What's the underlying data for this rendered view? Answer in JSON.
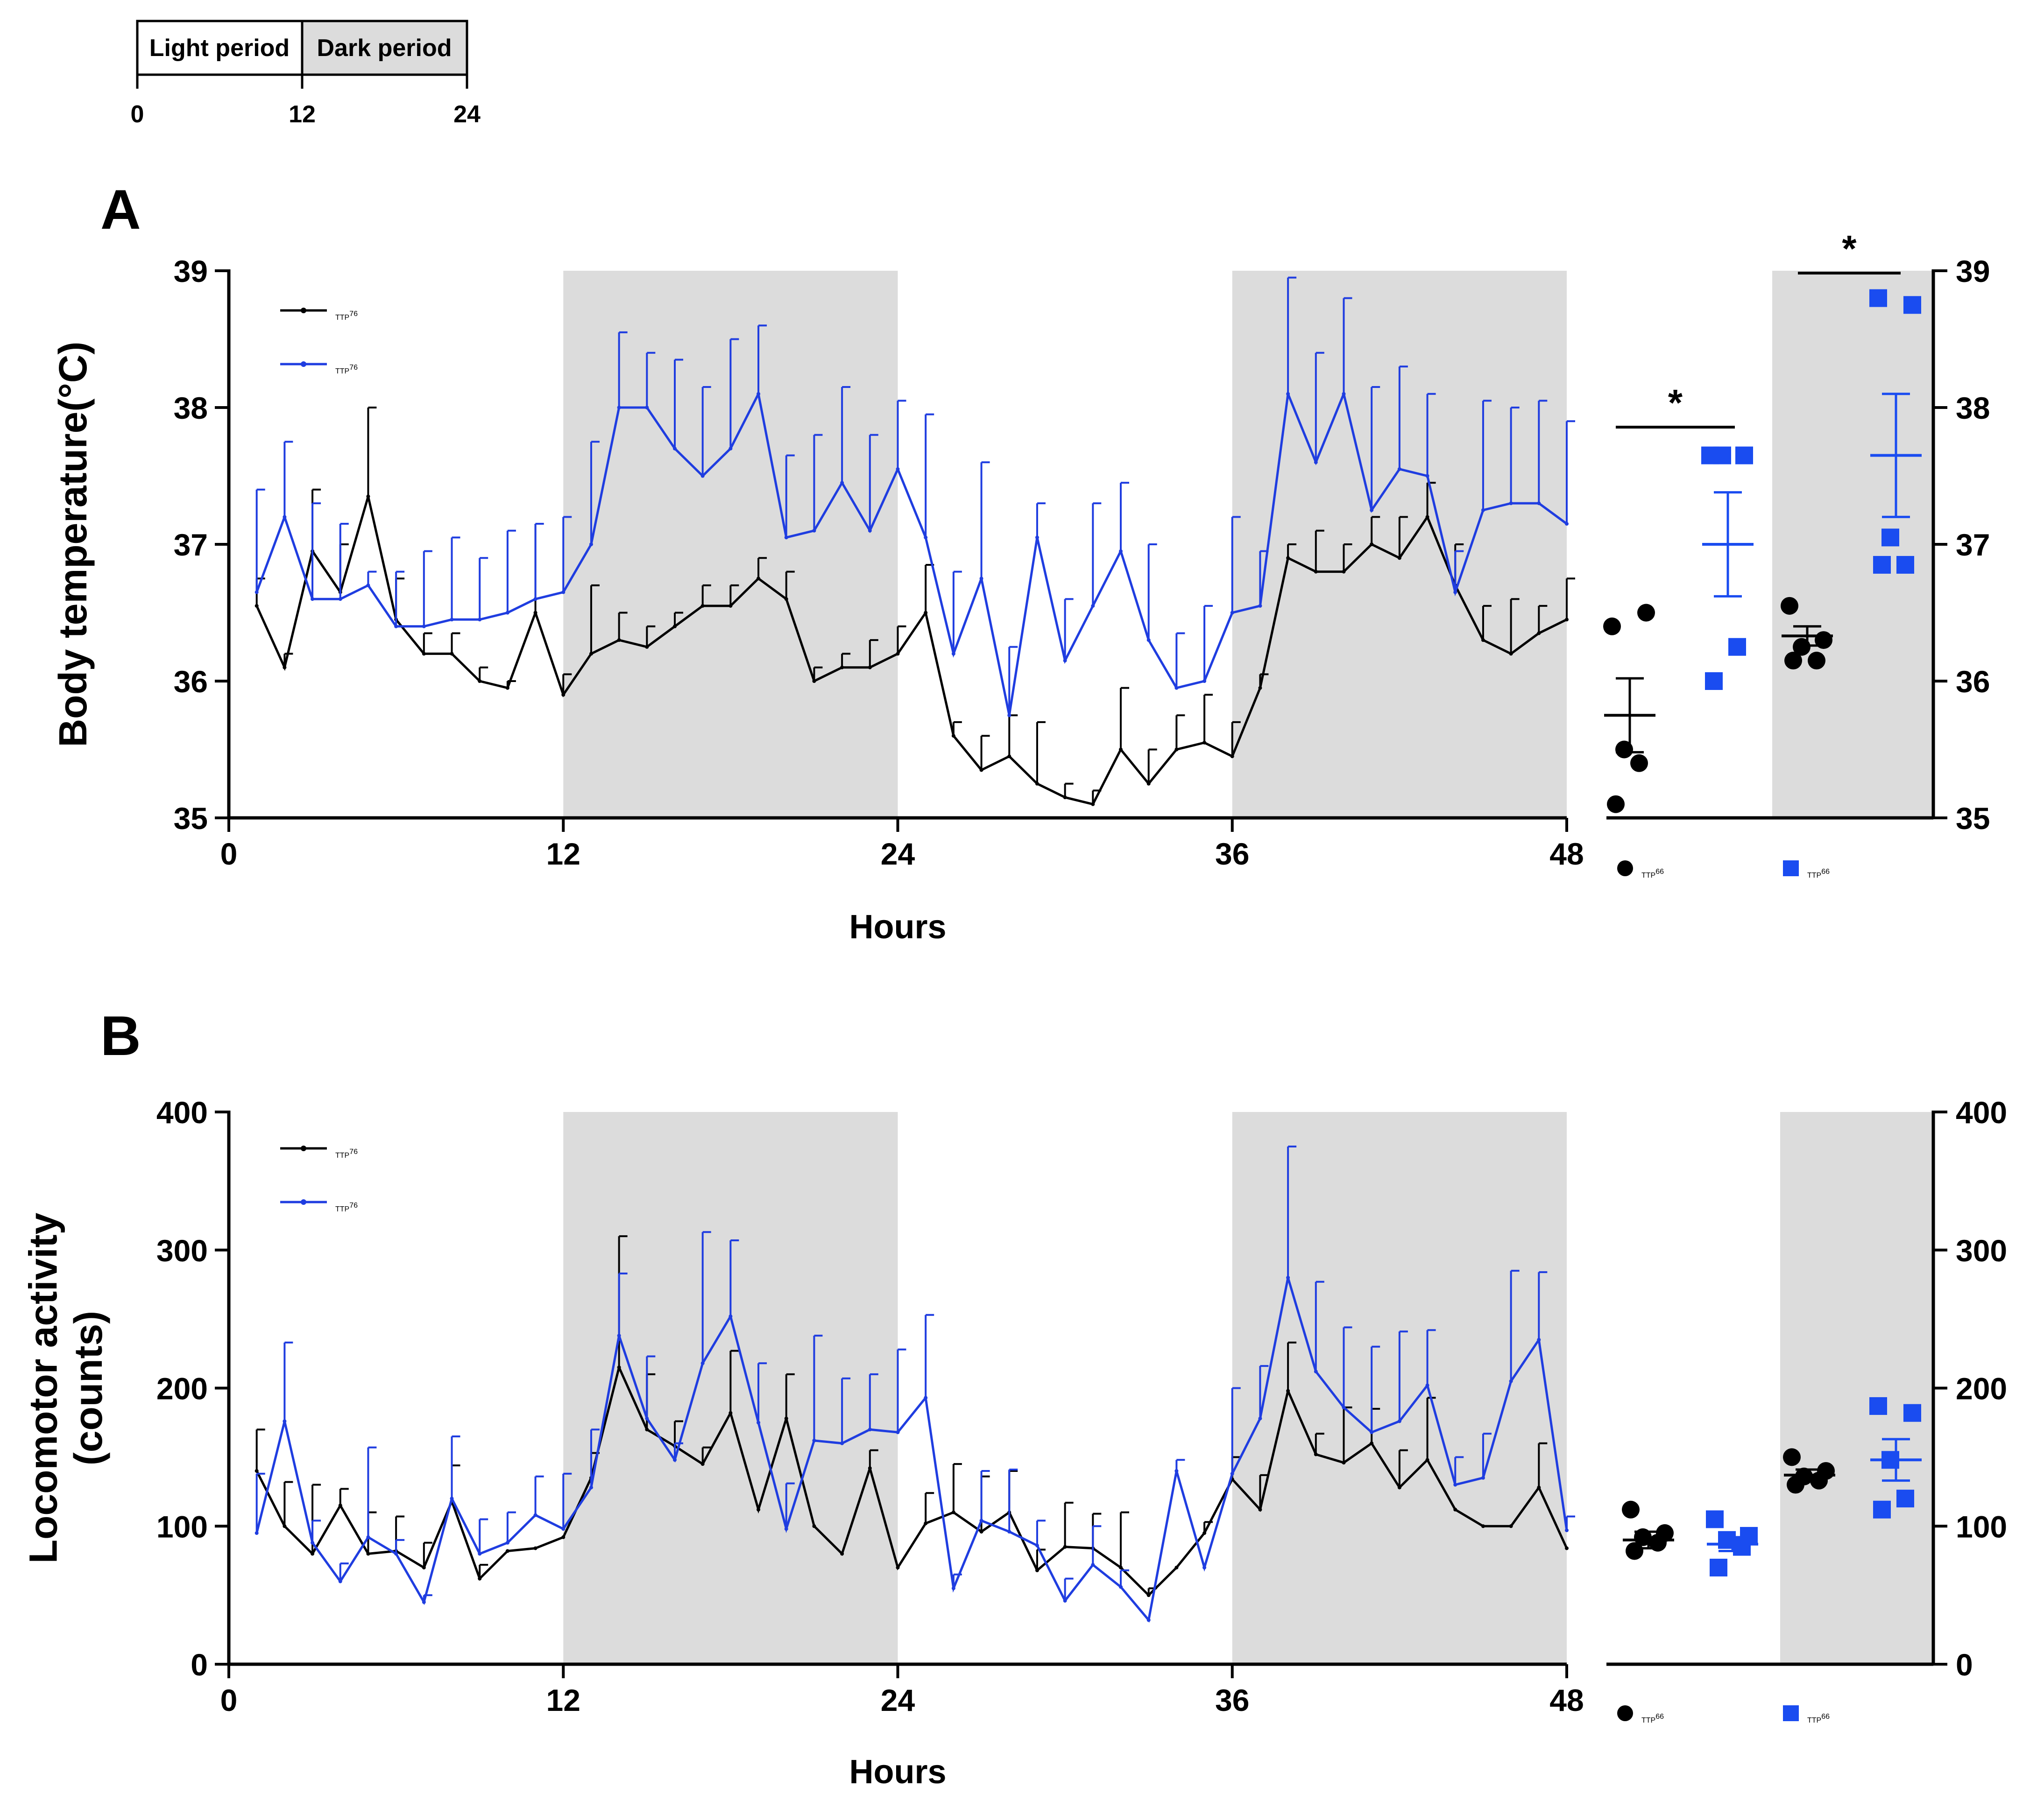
{
  "legend_bar": {
    "light_label": "Light period",
    "dark_label": "Dark period",
    "ticks": [
      "0",
      "12",
      "24"
    ]
  },
  "colors": {
    "wt": "#000000",
    "mut": "#1f3de0",
    "mut_marker": "#1a4cf0",
    "dark_shade": "#dcdcdc"
  },
  "chart_data": [
    {
      "id": "A",
      "panel_label": "A",
      "type": "line",
      "title": "",
      "xlabel": "Hours",
      "ylabel": "Body temperature(°C)",
      "xlim": [
        0,
        48
      ],
      "ylim": [
        35,
        39
      ],
      "xticks": [
        "0",
        "12",
        "24",
        "36",
        "48"
      ],
      "yticks": [
        "35",
        "36",
        "37",
        "38",
        "39"
      ],
      "shaded_x": [
        [
          12,
          24
        ],
        [
          36,
          48
        ]
      ],
      "legend": {
        "position": "top-left",
        "entries": [
          {
            "name": "TTP",
            "sup": "+/+",
            "series": "wt"
          },
          {
            "name": "TTP",
            "sup": "+/▯",
            "series": "mut"
          }
        ]
      },
      "x": [
        1,
        2,
        3,
        4,
        5,
        6,
        7,
        8,
        9,
        10,
        11,
        12,
        13,
        14,
        15,
        16,
        17,
        18,
        19,
        20,
        21,
        22,
        23,
        24,
        25,
        26,
        27,
        28,
        29,
        30,
        31,
        32,
        33,
        34,
        35,
        36,
        37,
        38,
        39,
        40,
        41,
        42,
        43,
        44,
        45,
        46,
        47,
        48
      ],
      "series": [
        {
          "name": "TTP+/+",
          "key": "wt",
          "values": [
            36.55,
            36.1,
            36.95,
            36.65,
            37.35,
            36.45,
            36.2,
            36.2,
            36.0,
            35.95,
            36.5,
            35.9,
            36.2,
            36.3,
            36.25,
            36.4,
            36.55,
            36.55,
            36.75,
            36.6,
            36.0,
            36.1,
            36.1,
            36.2,
            36.5,
            35.6,
            35.35,
            35.45,
            35.25,
            35.15,
            35.1,
            35.5,
            35.25,
            35.5,
            35.55,
            35.45,
            35.95,
            36.9,
            36.8,
            36.8,
            37.0,
            36.9,
            37.2,
            36.7,
            36.3,
            36.2,
            36.35,
            36.45
          ],
          "errors": [
            0.2,
            0.1,
            0.45,
            0.35,
            0.65,
            0.3,
            0.15,
            0.15,
            0.1,
            0.05,
            0.65,
            0.15,
            0.5,
            0.2,
            0.15,
            0.1,
            0.15,
            0.15,
            0.15,
            0.2,
            0.1,
            0.1,
            0.2,
            0.2,
            0.35,
            0.1,
            0.25,
            0.3,
            0.45,
            0.1,
            0.1,
            0.45,
            0.25,
            0.25,
            0.35,
            0.25,
            0.1,
            0.1,
            0.3,
            0.2,
            0.2,
            0.3,
            0.25,
            0.3,
            0.25,
            0.4,
            0.2,
            0.3
          ]
        },
        {
          "name": "TTP+/▯",
          "key": "mut",
          "values": [
            36.65,
            37.2,
            36.6,
            36.6,
            36.7,
            36.4,
            36.4,
            36.45,
            36.45,
            36.5,
            36.6,
            36.65,
            37.0,
            38.0,
            38.0,
            37.7,
            37.5,
            37.7,
            38.1,
            37.05,
            37.1,
            37.45,
            37.1,
            37.55,
            37.05,
            36.2,
            36.75,
            35.75,
            37.05,
            36.15,
            36.55,
            36.95,
            36.3,
            35.95,
            36.0,
            36.5,
            36.55,
            38.1,
            37.6,
            38.1,
            37.25,
            37.55,
            37.5,
            36.65,
            37.25,
            37.3,
            37.3,
            37.15
          ],
          "errors": [
            0.75,
            0.55,
            0.7,
            0.55,
            0.1,
            0.4,
            0.55,
            0.6,
            0.45,
            0.6,
            0.55,
            0.55,
            0.75,
            0.55,
            0.4,
            0.65,
            0.65,
            0.8,
            0.5,
            0.6,
            0.7,
            0.7,
            0.7,
            0.5,
            0.9,
            0.6,
            0.85,
            0.5,
            0.25,
            0.45,
            0.75,
            0.5,
            0.7,
            0.4,
            0.55,
            0.7,
            0.4,
            0.85,
            0.8,
            0.7,
            0.9,
            0.75,
            0.6,
            0.3,
            0.8,
            0.7,
            0.75,
            0.75
          ]
        }
      ],
      "summary": {
        "type": "scatter",
        "ylim": [
          35,
          39
        ],
        "yticks": [
          "35",
          "36",
          "37",
          "38",
          "39"
        ],
        "shaded_group": "dark",
        "legend": [
          {
            "name": "TTP",
            "sup": "+/+",
            "key": "wt"
          },
          {
            "name": "TTP",
            "sup": "+/▯",
            "key": "mut"
          }
        ],
        "groups": [
          {
            "key": "wt",
            "period": "light",
            "mean": 35.75,
            "sem": 0.27,
            "points": [
              36.4,
              36.5,
              35.5,
              35.4,
              35.1
            ]
          },
          {
            "key": "mut",
            "period": "light",
            "mean": 37.0,
            "sem": 0.38,
            "points": [
              37.65,
              37.65,
              37.65,
              36.25,
              36.0
            ]
          },
          {
            "key": "wt",
            "period": "dark",
            "mean": 36.33,
            "sem": 0.07,
            "points": [
              36.55,
              36.3,
              36.25,
              36.15,
              36.15
            ]
          },
          {
            "key": "mut",
            "period": "dark",
            "mean": 37.65,
            "sem": 0.45,
            "points": [
              38.8,
              38.75,
              37.05,
              36.85,
              36.85
            ]
          }
        ],
        "significance": [
          {
            "between": [
              "wt-light",
              "mut-light"
            ],
            "label": "*"
          },
          {
            "between": [
              "wt-dark",
              "mut-dark"
            ],
            "label": "*"
          }
        ]
      }
    },
    {
      "id": "B",
      "panel_label": "B",
      "type": "line",
      "title": "",
      "xlabel": "Hours",
      "ylabel": "Locomotor activity (counts)",
      "xlim": [
        0,
        48
      ],
      "ylim": [
        0,
        400
      ],
      "xticks": [
        "0",
        "12",
        "24",
        "36",
        "48"
      ],
      "yticks": [
        "0",
        "100",
        "200",
        "300",
        "400"
      ],
      "shaded_x": [
        [
          12,
          24
        ],
        [
          36,
          48
        ]
      ],
      "legend": {
        "position": "top-left",
        "entries": [
          {
            "name": "TTP",
            "sup": "+/+",
            "series": "wt"
          },
          {
            "name": "TTP",
            "sup": "+/▯",
            "series": "mut"
          }
        ]
      },
      "x": [
        1,
        2,
        3,
        4,
        5,
        6,
        7,
        8,
        9,
        10,
        11,
        12,
        13,
        14,
        15,
        16,
        17,
        18,
        19,
        20,
        21,
        22,
        23,
        24,
        25,
        26,
        27,
        28,
        29,
        30,
        31,
        32,
        33,
        34,
        35,
        36,
        37,
        38,
        39,
        40,
        41,
        42,
        43,
        44,
        45,
        46,
        47,
        48
      ],
      "series": [
        {
          "name": "TTP+/+",
          "key": "wt",
          "values": [
            140,
            100,
            80,
            115,
            80,
            82,
            70,
            118,
            62,
            82,
            84,
            92,
            135,
            215,
            170,
            158,
            145,
            182,
            112,
            178,
            100,
            80,
            142,
            70,
            102,
            110,
            96,
            110,
            68,
            85,
            84,
            70,
            50,
            70,
            95,
            134,
            112,
            198,
            152,
            146,
            160,
            128,
            148,
            112,
            100,
            100,
            128,
            84
          ],
          "errors": [
            30,
            32,
            50,
            12,
            30,
            25,
            18,
            26,
            10,
            0,
            0,
            0,
            18,
            95,
            40,
            18,
            12,
            45,
            0,
            32,
            0,
            0,
            13,
            0,
            22,
            35,
            40,
            30,
            15,
            32,
            25,
            40,
            5,
            0,
            8,
            16,
            25,
            35,
            15,
            40,
            25,
            27,
            45,
            0,
            0,
            0,
            32,
            0
          ]
        },
        {
          "name": "TTP+/▯",
          "key": "mut",
          "values": [
            95,
            176,
            88,
            60,
            92,
            80,
            45,
            120,
            80,
            88,
            108,
            98,
            128,
            238,
            178,
            148,
            218,
            252,
            175,
            98,
            162,
            160,
            170,
            168,
            193,
            55,
            104,
            96,
            86,
            46,
            72,
            56,
            32,
            140,
            70,
            138,
            178,
            280,
            212,
            186,
            168,
            176,
            202,
            130,
            135,
            205,
            235,
            97
          ],
          "errors": [
            43,
            57,
            16,
            13,
            65,
            10,
            5,
            45,
            25,
            22,
            28,
            40,
            42,
            45,
            45,
            12,
            95,
            55,
            43,
            33,
            76,
            47,
            40,
            60,
            60,
            10,
            36,
            45,
            18,
            16,
            28,
            12,
            0,
            8,
            0,
            62,
            38,
            95,
            65,
            58,
            62,
            65,
            40,
            20,
            32,
            80,
            49,
            10
          ]
        }
      ],
      "summary": {
        "type": "scatter",
        "ylim": [
          0,
          400
        ],
        "yticks": [
          "0",
          "100",
          "200",
          "300",
          "400"
        ],
        "shaded_group": "dark",
        "legend": [
          {
            "name": "TTP",
            "sup": "+/+",
            "key": "wt"
          },
          {
            "name": "TTP",
            "sup": "+/▯",
            "key": "mut"
          }
        ],
        "groups": [
          {
            "key": "wt",
            "period": "light",
            "mean": 90,
            "sem": 6,
            "points": [
              112,
              95,
              92,
              88,
              82
            ]
          },
          {
            "key": "mut",
            "period": "light",
            "mean": 87,
            "sem": 5,
            "points": [
              105,
              93,
              90,
              85,
              70
            ]
          },
          {
            "key": "wt",
            "period": "dark",
            "mean": 137,
            "sem": 4,
            "points": [
              150,
              140,
              136,
              133,
              130
            ]
          },
          {
            "key": "mut",
            "period": "dark",
            "mean": 148,
            "sem": 15,
            "points": [
              187,
              182,
              148,
              120,
              112
            ]
          }
        ],
        "significance": []
      }
    }
  ]
}
